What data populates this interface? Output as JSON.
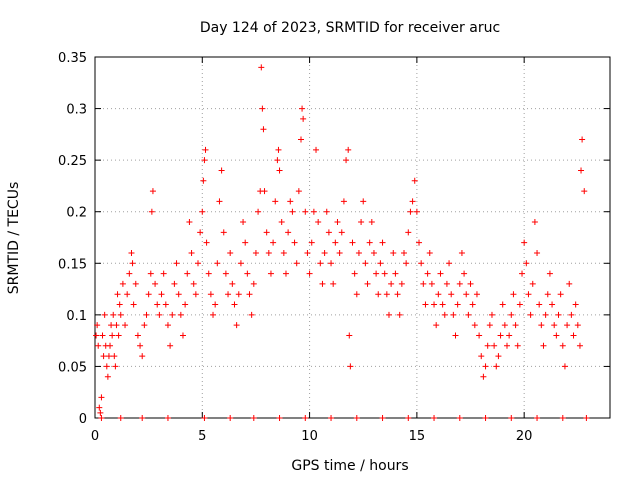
{
  "chart_data": {
    "type": "scatter",
    "title": "Day 124 of 2023, SRMTID for receiver aruc",
    "xlabel": "GPS time / hours",
    "ylabel": "SRMTID / TECUs",
    "xlim": [
      0,
      24
    ],
    "ylim": [
      0,
      0.35
    ],
    "xticks": [
      0,
      5,
      10,
      15,
      20
    ],
    "xtick_labels": [
      "0",
      "5",
      "10",
      "15",
      "20"
    ],
    "yticks": [
      0,
      0.05,
      0.1,
      0.15,
      0.2,
      0.25,
      0.3,
      0.35
    ],
    "ytick_labels": [
      "0",
      "0.05",
      "0.1",
      "0.15",
      "0.2",
      "0.25",
      "0.3",
      "0.35"
    ],
    "grid": true,
    "marker": "+",
    "marker_color": "#ff0000",
    "series": [
      {
        "name": "SRMTID",
        "points": [
          [
            0.05,
            0.08
          ],
          [
            0.1,
            0.09
          ],
          [
            0.15,
            0.07
          ],
          [
            0.2,
            0.01
          ],
          [
            0.25,
            0.005
          ],
          [
            0.3,
            0.02
          ],
          [
            0.35,
            0.08
          ],
          [
            0.4,
            0.06
          ],
          [
            0.45,
            0.1
          ],
          [
            0.5,
            0.07
          ],
          [
            0.55,
            0.05
          ],
          [
            0.6,
            0.04
          ],
          [
            0.65,
            0.06
          ],
          [
            0.7,
            0.07
          ],
          [
            0.75,
            0.09
          ],
          [
            0.8,
            0.08
          ],
          [
            0.85,
            0.1
          ],
          [
            0.9,
            0.06
          ],
          [
            0.95,
            0.05
          ],
          [
            1.0,
            0.09
          ],
          [
            1.05,
            0.12
          ],
          [
            1.1,
            0.08
          ],
          [
            1.15,
            0.11
          ],
          [
            1.2,
            0.1
          ],
          [
            1.3,
            0.13
          ],
          [
            1.4,
            0.09
          ],
          [
            1.5,
            0.12
          ],
          [
            1.6,
            0.14
          ],
          [
            1.7,
            0.16
          ],
          [
            1.75,
            0.15
          ],
          [
            1.8,
            0.11
          ],
          [
            1.9,
            0.13
          ],
          [
            2.0,
            0.08
          ],
          [
            2.1,
            0.07
          ],
          [
            2.2,
            0.06
          ],
          [
            2.3,
            0.09
          ],
          [
            2.4,
            0.1
          ],
          [
            2.5,
            0.12
          ],
          [
            2.6,
            0.14
          ],
          [
            2.65,
            0.2
          ],
          [
            2.7,
            0.22
          ],
          [
            2.8,
            0.13
          ],
          [
            2.9,
            0.11
          ],
          [
            3.0,
            0.1
          ],
          [
            3.1,
            0.12
          ],
          [
            3.2,
            0.14
          ],
          [
            3.3,
            0.11
          ],
          [
            3.4,
            0.09
          ],
          [
            3.5,
            0.07
          ],
          [
            3.6,
            0.1
          ],
          [
            3.7,
            0.13
          ],
          [
            3.8,
            0.15
          ],
          [
            3.9,
            0.12
          ],
          [
            4.0,
            0.1
          ],
          [
            4.1,
            0.08
          ],
          [
            4.2,
            0.11
          ],
          [
            4.3,
            0.14
          ],
          [
            4.4,
            0.19
          ],
          [
            4.5,
            0.16
          ],
          [
            4.6,
            0.13
          ],
          [
            4.7,
            0.12
          ],
          [
            4.8,
            0.15
          ],
          [
            4.9,
            0.18
          ],
          [
            5.0,
            0.2
          ],
          [
            5.05,
            0.23
          ],
          [
            5.1,
            0.25
          ],
          [
            5.15,
            0.26
          ],
          [
            5.2,
            0.17
          ],
          [
            5.3,
            0.14
          ],
          [
            5.4,
            0.12
          ],
          [
            5.5,
            0.1
          ],
          [
            5.6,
            0.11
          ],
          [
            5.7,
            0.15
          ],
          [
            5.8,
            0.21
          ],
          [
            5.9,
            0.24
          ],
          [
            6.0,
            0.18
          ],
          [
            6.1,
            0.14
          ],
          [
            6.2,
            0.12
          ],
          [
            6.3,
            0.16
          ],
          [
            6.4,
            0.13
          ],
          [
            6.5,
            0.11
          ],
          [
            6.6,
            0.09
          ],
          [
            6.7,
            0.12
          ],
          [
            6.8,
            0.15
          ],
          [
            6.9,
            0.19
          ],
          [
            7.0,
            0.17
          ],
          [
            7.1,
            0.14
          ],
          [
            7.2,
            0.12
          ],
          [
            7.3,
            0.1
          ],
          [
            7.4,
            0.13
          ],
          [
            7.5,
            0.16
          ],
          [
            7.6,
            0.2
          ],
          [
            7.7,
            0.22
          ],
          [
            7.75,
            0.34
          ],
          [
            7.8,
            0.3
          ],
          [
            7.85,
            0.28
          ],
          [
            7.9,
            0.22
          ],
          [
            8.0,
            0.18
          ],
          [
            8.1,
            0.16
          ],
          [
            8.2,
            0.14
          ],
          [
            8.3,
            0.17
          ],
          [
            8.4,
            0.21
          ],
          [
            8.5,
            0.25
          ],
          [
            8.55,
            0.26
          ],
          [
            8.6,
            0.24
          ],
          [
            8.7,
            0.19
          ],
          [
            8.8,
            0.16
          ],
          [
            8.9,
            0.14
          ],
          [
            9.0,
            0.18
          ],
          [
            9.1,
            0.21
          ],
          [
            9.2,
            0.2
          ],
          [
            9.3,
            0.17
          ],
          [
            9.4,
            0.15
          ],
          [
            9.5,
            0.22
          ],
          [
            9.6,
            0.27
          ],
          [
            9.65,
            0.3
          ],
          [
            9.7,
            0.29
          ],
          [
            9.8,
            0.2
          ],
          [
            9.9,
            0.16
          ],
          [
            10.0,
            0.14
          ],
          [
            10.1,
            0.17
          ],
          [
            10.2,
            0.2
          ],
          [
            10.3,
            0.26
          ],
          [
            10.4,
            0.19
          ],
          [
            10.5,
            0.15
          ],
          [
            10.6,
            0.13
          ],
          [
            10.7,
            0.16
          ],
          [
            10.8,
            0.2
          ],
          [
            10.9,
            0.18
          ],
          [
            11.0,
            0.15
          ],
          [
            11.1,
            0.13
          ],
          [
            11.2,
            0.17
          ],
          [
            11.3,
            0.19
          ],
          [
            11.4,
            0.16
          ],
          [
            11.5,
            0.18
          ],
          [
            11.6,
            0.21
          ],
          [
            11.7,
            0.25
          ],
          [
            11.8,
            0.26
          ],
          [
            11.85,
            0.08
          ],
          [
            11.9,
            0.05
          ],
          [
            12.0,
            0.17
          ],
          [
            12.1,
            0.14
          ],
          [
            12.2,
            0.12
          ],
          [
            12.3,
            0.16
          ],
          [
            12.4,
            0.19
          ],
          [
            12.5,
            0.21
          ],
          [
            12.6,
            0.15
          ],
          [
            12.7,
            0.13
          ],
          [
            12.8,
            0.17
          ],
          [
            12.9,
            0.19
          ],
          [
            13.0,
            0.16
          ],
          [
            13.1,
            0.14
          ],
          [
            13.2,
            0.12
          ],
          [
            13.3,
            0.15
          ],
          [
            13.4,
            0.17
          ],
          [
            13.5,
            0.14
          ],
          [
            13.6,
            0.12
          ],
          [
            13.7,
            0.1
          ],
          [
            13.8,
            0.13
          ],
          [
            13.9,
            0.16
          ],
          [
            14.0,
            0.14
          ],
          [
            14.1,
            0.12
          ],
          [
            14.2,
            0.1
          ],
          [
            14.3,
            0.13
          ],
          [
            14.4,
            0.16
          ],
          [
            14.5,
            0.15
          ],
          [
            14.6,
            0.18
          ],
          [
            14.7,
            0.2
          ],
          [
            14.8,
            0.21
          ],
          [
            14.9,
            0.23
          ],
          [
            15.0,
            0.2
          ],
          [
            15.1,
            0.17
          ],
          [
            15.2,
            0.15
          ],
          [
            15.3,
            0.13
          ],
          [
            15.4,
            0.11
          ],
          [
            15.5,
            0.14
          ],
          [
            15.6,
            0.16
          ],
          [
            15.7,
            0.13
          ],
          [
            15.8,
            0.11
          ],
          [
            15.9,
            0.09
          ],
          [
            16.0,
            0.12
          ],
          [
            16.1,
            0.14
          ],
          [
            16.2,
            0.11
          ],
          [
            16.3,
            0.1
          ],
          [
            16.4,
            0.13
          ],
          [
            16.5,
            0.15
          ],
          [
            16.6,
            0.12
          ],
          [
            16.7,
            0.1
          ],
          [
            16.8,
            0.08
          ],
          [
            16.9,
            0.11
          ],
          [
            17.0,
            0.13
          ],
          [
            17.1,
            0.16
          ],
          [
            17.2,
            0.14
          ],
          [
            17.3,
            0.12
          ],
          [
            17.4,
            0.1
          ],
          [
            17.5,
            0.13
          ],
          [
            17.6,
            0.11
          ],
          [
            17.7,
            0.09
          ],
          [
            17.8,
            0.12
          ],
          [
            17.9,
            0.08
          ],
          [
            18.0,
            0.06
          ],
          [
            18.1,
            0.04
          ],
          [
            18.2,
            0.05
          ],
          [
            18.3,
            0.07
          ],
          [
            18.4,
            0.09
          ],
          [
            18.5,
            0.1
          ],
          [
            18.6,
            0.07
          ],
          [
            18.7,
            0.05
          ],
          [
            18.8,
            0.06
          ],
          [
            18.9,
            0.08
          ],
          [
            19.0,
            0.11
          ],
          [
            19.1,
            0.09
          ],
          [
            19.2,
            0.07
          ],
          [
            19.3,
            0.08
          ],
          [
            19.4,
            0.1
          ],
          [
            19.5,
            0.12
          ],
          [
            19.6,
            0.09
          ],
          [
            19.7,
            0.07
          ],
          [
            19.8,
            0.11
          ],
          [
            19.9,
            0.14
          ],
          [
            20.0,
            0.17
          ],
          [
            20.1,
            0.15
          ],
          [
            20.2,
            0.12
          ],
          [
            20.3,
            0.1
          ],
          [
            20.4,
            0.13
          ],
          [
            20.5,
            0.19
          ],
          [
            20.6,
            0.16
          ],
          [
            20.7,
            0.11
          ],
          [
            20.8,
            0.09
          ],
          [
            20.9,
            0.07
          ],
          [
            21.0,
            0.1
          ],
          [
            21.1,
            0.12
          ],
          [
            21.2,
            0.14
          ],
          [
            21.3,
            0.11
          ],
          [
            21.4,
            0.09
          ],
          [
            21.5,
            0.08
          ],
          [
            21.6,
            0.1
          ],
          [
            21.7,
            0.12
          ],
          [
            21.8,
            0.07
          ],
          [
            21.9,
            0.05
          ],
          [
            22.0,
            0.09
          ],
          [
            22.1,
            0.13
          ],
          [
            22.2,
            0.1
          ],
          [
            22.3,
            0.08
          ],
          [
            22.4,
            0.11
          ],
          [
            22.5,
            0.09
          ],
          [
            22.6,
            0.07
          ],
          [
            22.65,
            0.24
          ],
          [
            22.7,
            0.27
          ],
          [
            22.8,
            0.22
          ],
          [
            0.3,
            0.0
          ],
          [
            1.2,
            0.0
          ],
          [
            2.2,
            0.0
          ],
          [
            3.4,
            0.0
          ],
          [
            5.1,
            0.0
          ],
          [
            6.3,
            0.0
          ],
          [
            7.4,
            0.0
          ],
          [
            8.6,
            0.0
          ],
          [
            9.8,
            0.0
          ],
          [
            11.0,
            0.0
          ],
          [
            12.2,
            0.0
          ],
          [
            13.4,
            0.0
          ],
          [
            14.6,
            0.0
          ],
          [
            15.8,
            0.0
          ],
          [
            17.0,
            0.0
          ],
          [
            18.2,
            0.0
          ],
          [
            19.4,
            0.0
          ],
          [
            20.6,
            0.0
          ],
          [
            21.8,
            0.0
          ],
          [
            22.9,
            0.0
          ]
        ]
      }
    ]
  }
}
